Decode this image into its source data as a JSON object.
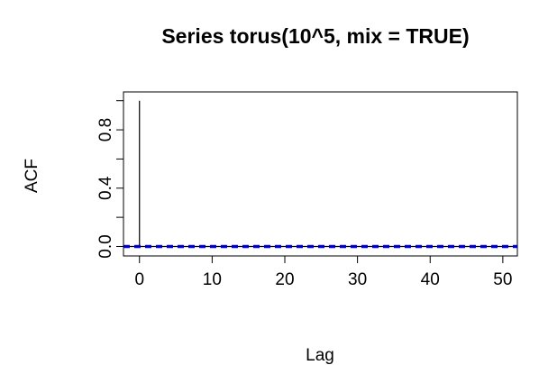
{
  "chart_data": {
    "type": "bar",
    "title": "Series  torus(10^5, mix = TRUE)",
    "xlabel": "Lag",
    "ylabel": "ACF",
    "xlim": [
      -2.2,
      52
    ],
    "ylim": [
      -0.065,
      1.06
    ],
    "x_ticks": [
      0,
      10,
      20,
      30,
      40,
      50
    ],
    "x_tick_labels": [
      "0",
      "10",
      "20",
      "30",
      "40",
      "50"
    ],
    "y_ticks": [
      0.0,
      0.2,
      0.4,
      0.6,
      0.8,
      1.0
    ],
    "y_tick_labels": [
      "0.0",
      "",
      "0.4",
      "",
      "0.8",
      ""
    ],
    "lags": [
      0,
      1,
      2,
      3,
      4,
      5,
      6,
      7,
      8,
      9,
      10,
      11,
      12,
      13,
      14,
      15,
      16,
      17,
      18,
      19,
      20,
      21,
      22,
      23,
      24,
      25,
      26,
      27,
      28,
      29,
      30,
      31,
      32,
      33,
      34,
      35,
      36,
      37,
      38,
      39,
      40,
      41,
      42,
      43,
      44,
      45,
      46,
      47,
      48,
      49,
      50,
      51,
      52
    ],
    "values": [
      1.0,
      0,
      0,
      0,
      0,
      0,
      0,
      0,
      0,
      0,
      0,
      0,
      0,
      0,
      0,
      0,
      0,
      0,
      0,
      0,
      0,
      0,
      0,
      0,
      0,
      0,
      0,
      0,
      0,
      0,
      0,
      0,
      0,
      0,
      0,
      0,
      0,
      0,
      0,
      0,
      0,
      0,
      0,
      0,
      0,
      0,
      0,
      0,
      0,
      0,
      0,
      0,
      0
    ],
    "confidence_bounds": [
      0.0062,
      -0.0062
    ],
    "confidence_color": "#0000ff",
    "bar_color": "#000000",
    "grid": false,
    "legend": "none"
  }
}
